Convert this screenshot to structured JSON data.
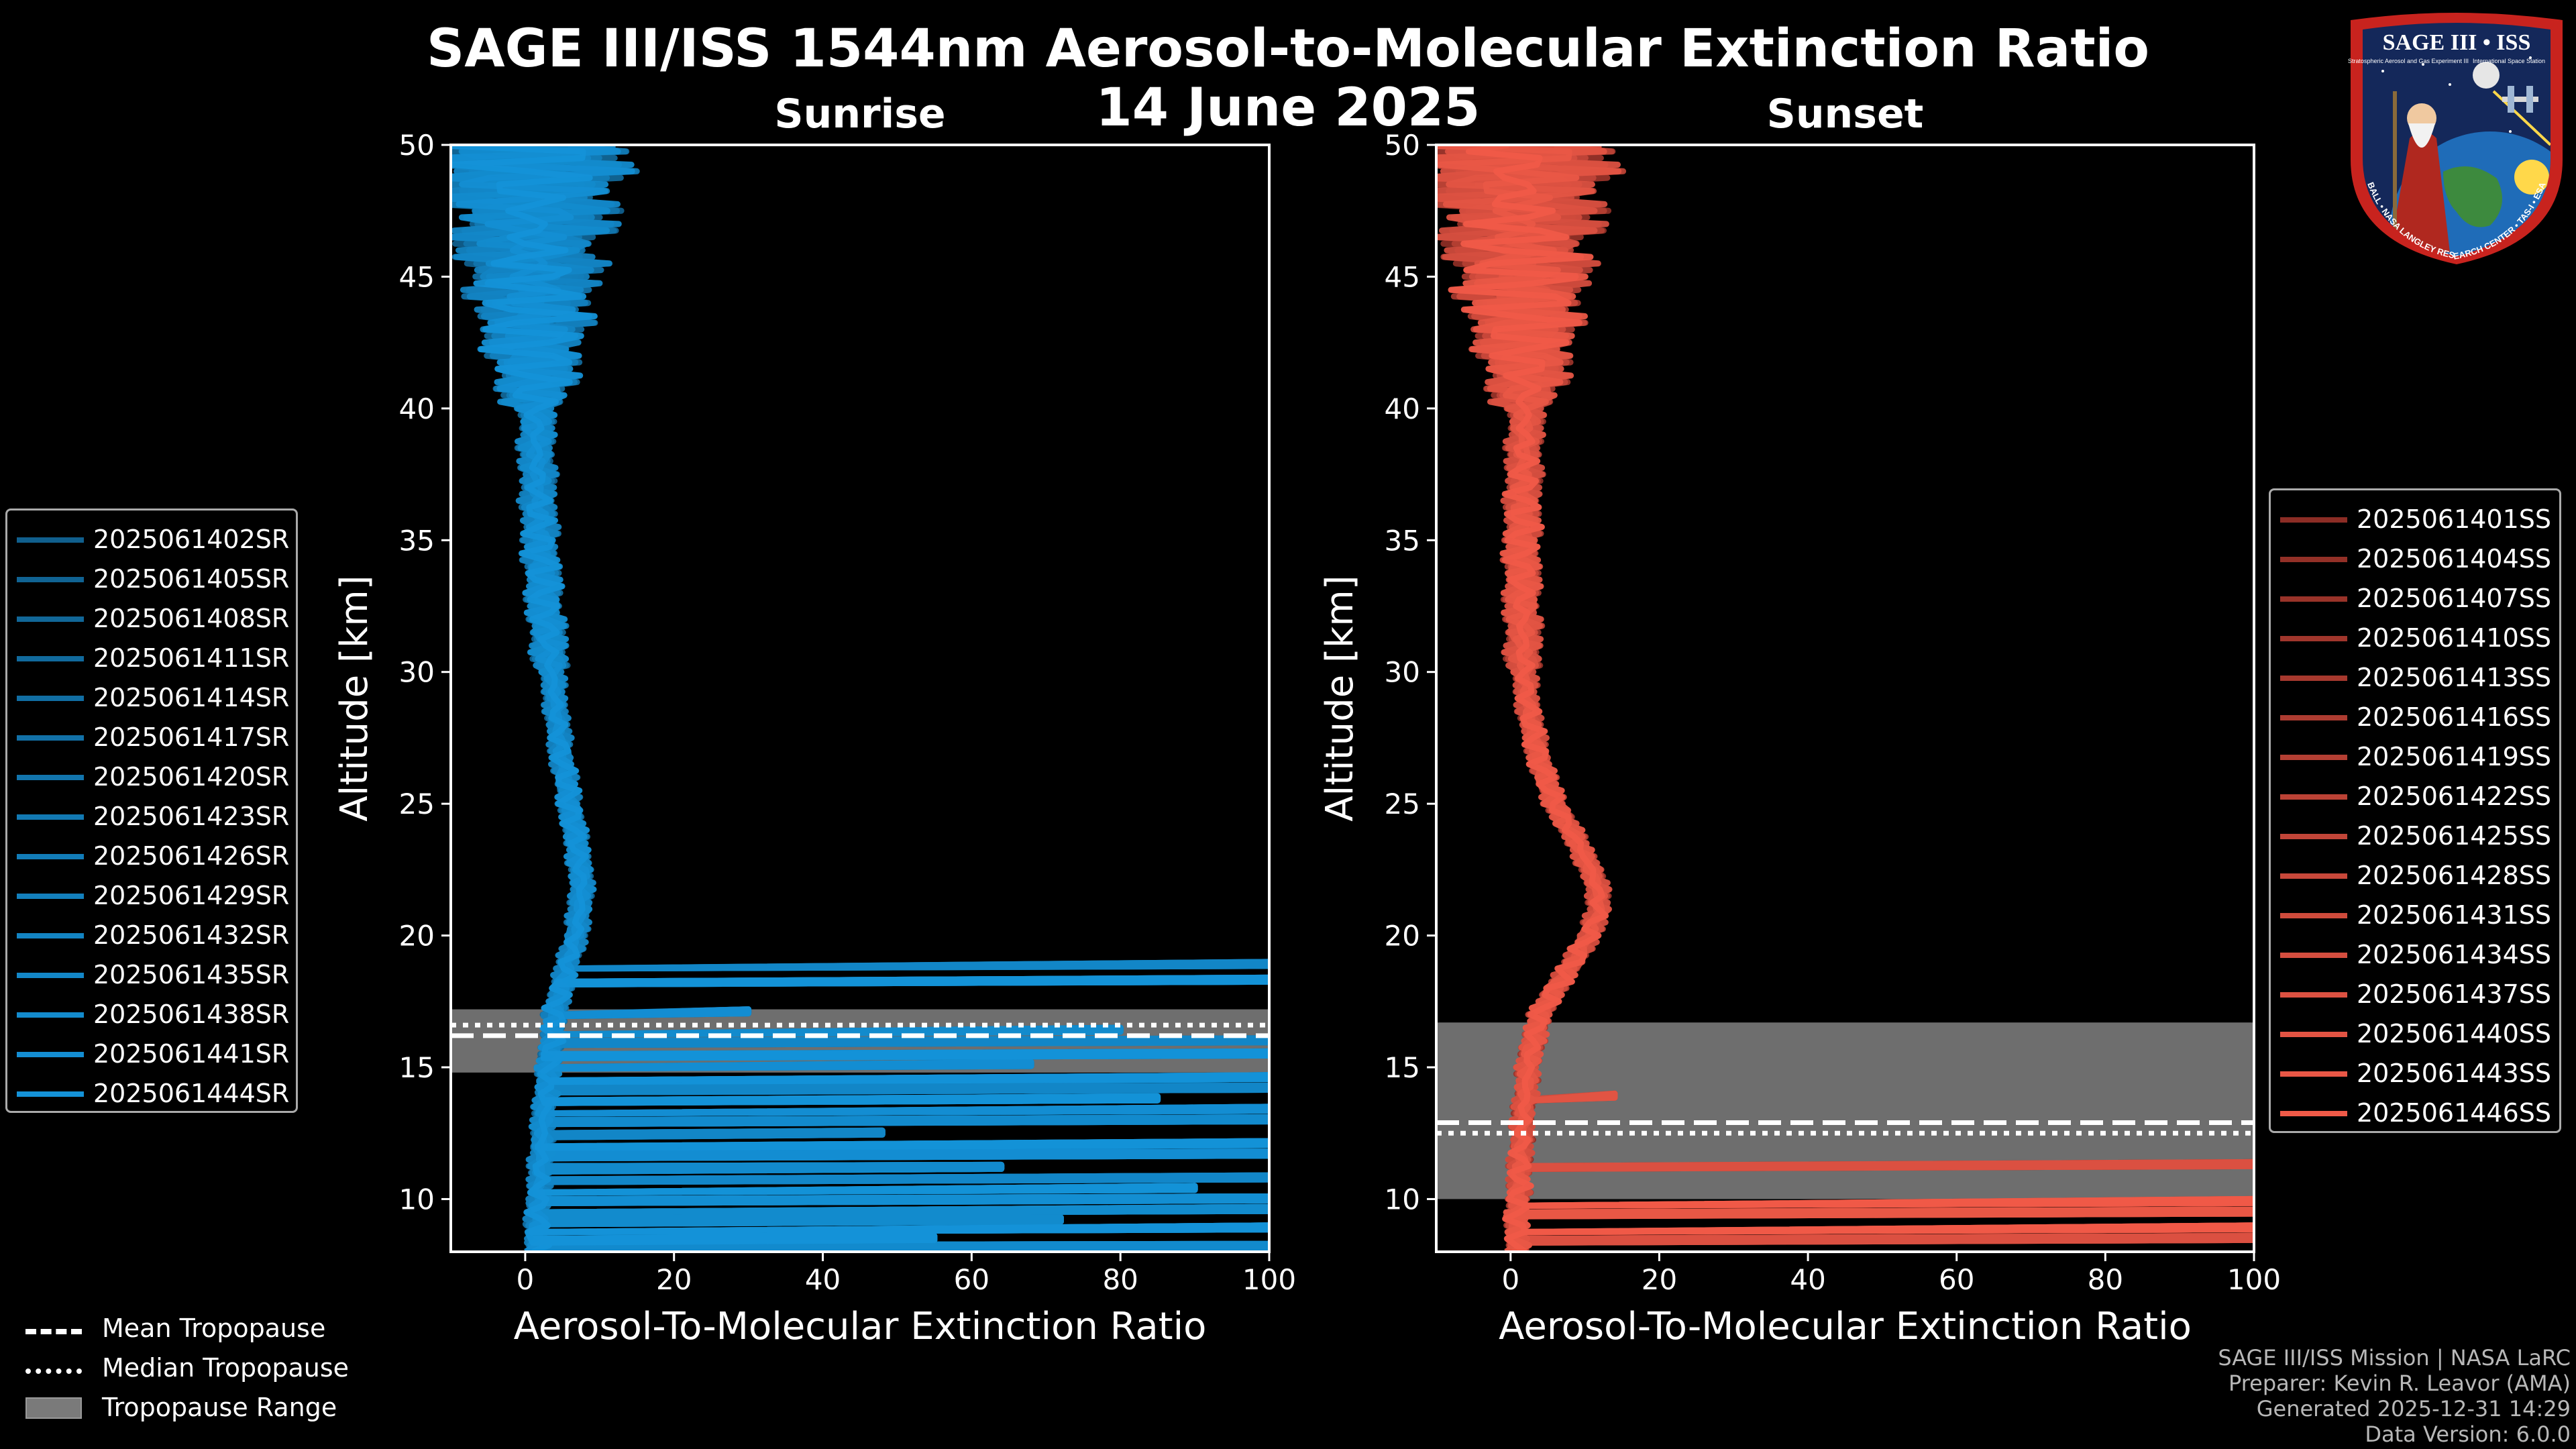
{
  "header": {
    "title": "SAGE III/ISS 1544nm Aerosol-to-Molecular Extinction Ratio",
    "date": "14 June 2025"
  },
  "logo": {
    "name": "SAGE III • ISS",
    "subtitle_left": "Stratospheric Aerosol and Gas Experiment III",
    "subtitle_right": "International Space Station",
    "ring_text": "BALL • NASA LANGLEY RESEARCH CENTER • TAS-I • ESA"
  },
  "colors": {
    "sunrise_light": "#1492d8",
    "sunrise_dark": "#0d3650",
    "sunset_light": "#f05a48",
    "sunset_dark": "#3a0808",
    "tropopause_fill": "#7a7a7a",
    "background": "#000000"
  },
  "tropopause_legend": {
    "mean": "Mean Tropopause",
    "median": "Median Tropopause",
    "range": "Tropopause Range"
  },
  "footer": {
    "mission": "SAGE III/ISS Mission | NASA LaRC",
    "preparer": "Preparer: Kevin R. Leavor (AMA)",
    "generated": "Generated 2025-12-31 14:29",
    "version": "Data Version: 6.0.0"
  },
  "chart_data": [
    {
      "type": "line",
      "panel": "sunrise",
      "title": "Sunrise",
      "xlabel": "Aerosol-To-Molecular Extinction Ratio",
      "ylabel": "Altitude [km]",
      "xlim": [
        -10,
        100
      ],
      "ylim": [
        8,
        50
      ],
      "xticks": [
        0,
        20,
        40,
        60,
        80,
        100
      ],
      "yticks": [
        10,
        15,
        20,
        25,
        30,
        35,
        40,
        45,
        50
      ],
      "tropopause": {
        "mean_km": 16.2,
        "median_km": 16.6,
        "range_km": [
          14.8,
          17.2
        ]
      },
      "base_profile": {
        "altitude_km": [
          8,
          10,
          12,
          14,
          15,
          16,
          17,
          18,
          19,
          20,
          21,
          22,
          23,
          24,
          25,
          26,
          27,
          28,
          29,
          30,
          32,
          34,
          36,
          38,
          40,
          42,
          44,
          46,
          48,
          50
        ],
        "ratio": [
          1.5,
          1.8,
          2.2,
          2.8,
          3.2,
          3.6,
          4.0,
          4.8,
          5.8,
          6.8,
          7.4,
          7.6,
          7.2,
          6.6,
          6.0,
          5.4,
          4.8,
          4.4,
          4.0,
          3.6,
          2.8,
          2.2,
          1.8,
          1.6,
          1.4,
          1.2,
          1.0,
          0.8,
          0.6,
          0.5
        ]
      },
      "series": [
        {
          "name": "2025061402SR"
        },
        {
          "name": "2025061405SR"
        },
        {
          "name": "2025061408SR"
        },
        {
          "name": "2025061411SR"
        },
        {
          "name": "2025061414SR"
        },
        {
          "name": "2025061417SR"
        },
        {
          "name": "2025061420SR"
        },
        {
          "name": "2025061423SR"
        },
        {
          "name": "2025061426SR"
        },
        {
          "name": "2025061429SR"
        },
        {
          "name": "2025061432SR"
        },
        {
          "name": "2025061435SR"
        },
        {
          "name": "2025061438SR"
        },
        {
          "name": "2025061441SR"
        },
        {
          "name": "2025061444SR"
        }
      ],
      "cloud_spikes": {
        "altitude_km": [
          8.3,
          8.6,
          9.0,
          9.3,
          9.7,
          10.1,
          10.5,
          10.9,
          11.3,
          11.8,
          12.2,
          12.6,
          13.1,
          13.5,
          13.9,
          14.3,
          14.7,
          15.2,
          15.6,
          16.1,
          16.5,
          17.2,
          18.4,
          19.0
        ],
        "ratio": [
          100,
          55,
          100,
          72,
          100,
          100,
          90,
          100,
          64,
          100,
          100,
          48,
          100,
          100,
          85,
          100,
          100,
          68,
          100,
          100,
          80,
          30,
          100,
          100
        ]
      }
    },
    {
      "type": "line",
      "panel": "sunset",
      "title": "Sunset",
      "xlabel": "Aerosol-To-Molecular Extinction Ratio",
      "ylabel": "Altitude [km]",
      "xlim": [
        -10,
        100
      ],
      "ylim": [
        8,
        50
      ],
      "xticks": [
        0,
        20,
        40,
        60,
        80,
        100
      ],
      "yticks": [
        10,
        15,
        20,
        25,
        30,
        35,
        40,
        45,
        50
      ],
      "tropopause": {
        "mean_km": 12.9,
        "median_km": 12.5,
        "range_km": [
          10.0,
          16.7
        ]
      },
      "base_profile": {
        "altitude_km": [
          8,
          10,
          12,
          14,
          15,
          16,
          17,
          18,
          19,
          20,
          21,
          22,
          23,
          24,
          25,
          26,
          27,
          28,
          29,
          30,
          32,
          34,
          36,
          38,
          40,
          42,
          44,
          46,
          48,
          50
        ],
        "ratio": [
          0.8,
          1.0,
          1.4,
          2.0,
          2.4,
          3.0,
          4.0,
          6.0,
          8.5,
          10.5,
          12.0,
          11.5,
          10.0,
          8.0,
          6.0,
          4.6,
          3.6,
          2.8,
          2.2,
          1.8,
          1.6,
          1.5,
          1.6,
          1.8,
          2.0,
          2.0,
          1.6,
          1.2,
          0.8,
          0.6
        ]
      },
      "series": [
        {
          "name": "2025061401SS"
        },
        {
          "name": "2025061404SS"
        },
        {
          "name": "2025061407SS"
        },
        {
          "name": "2025061410SS"
        },
        {
          "name": "2025061413SS"
        },
        {
          "name": "2025061416SS"
        },
        {
          "name": "2025061419SS"
        },
        {
          "name": "2025061422SS"
        },
        {
          "name": "2025061425SS"
        },
        {
          "name": "2025061428SS"
        },
        {
          "name": "2025061431SS"
        },
        {
          "name": "2025061434SS"
        },
        {
          "name": "2025061437SS"
        },
        {
          "name": "2025061440SS"
        },
        {
          "name": "2025061443SS"
        },
        {
          "name": "2025061446SS"
        }
      ],
      "cloud_spikes": {
        "altitude_km": [
          8.6,
          9.0,
          9.6,
          10.0,
          11.4,
          14.0
        ],
        "ratio": [
          100,
          100,
          100,
          100,
          100,
          14
        ]
      }
    }
  ]
}
